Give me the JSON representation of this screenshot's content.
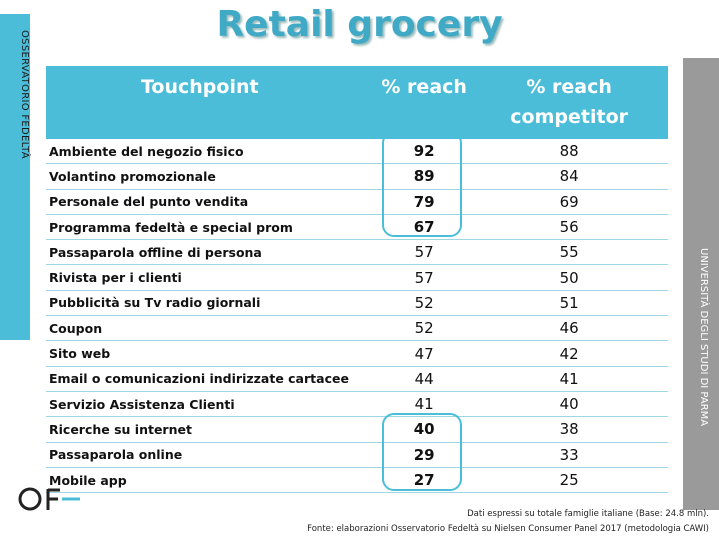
{
  "title": "Retail grocery",
  "side_left": "OSSERVATORIO FEDELTÀ",
  "side_right": "UNIVERSITÀ DEGLI STUDI DI PARMA",
  "table": {
    "header": [
      "Touchpoint",
      "% reach",
      "% reach competitor"
    ],
    "rows": [
      [
        "Ambiente del negozio fisico",
        92,
        88
      ],
      [
        "Volantino promozionale",
        89,
        84
      ],
      [
        "Personale del punto vendita",
        79,
        69
      ],
      [
        "Programma fedeltà e special prom",
        67,
        56
      ],
      [
        "Passaparola offline di persona",
        57,
        55
      ],
      [
        "Rivista per i clienti",
        57,
        50
      ],
      [
        "Pubblicità su Tv  radio  giornali",
        52,
        51
      ],
      [
        "Coupon",
        52,
        46
      ],
      [
        "Sito web",
        47,
        42
      ],
      [
        "Email o comunicazioni indirizzate cartacee",
        44,
        41
      ],
      [
        "Servizio Assistenza Clienti",
        41,
        40
      ],
      [
        "Ricerche su internet",
        40,
        38
      ],
      [
        "Passaparola online",
        29,
        33
      ],
      [
        "Mobile app",
        27,
        25
      ]
    ]
  },
  "footnotes": [
    "Dati espressi su totale famiglie italiane (Base: 24.8 mln).",
    "Fonte: elaborazioni Osservatorio Fedeltà su Nielsen Consumer Panel 2017 (metodologia CAWI)"
  ]
}
